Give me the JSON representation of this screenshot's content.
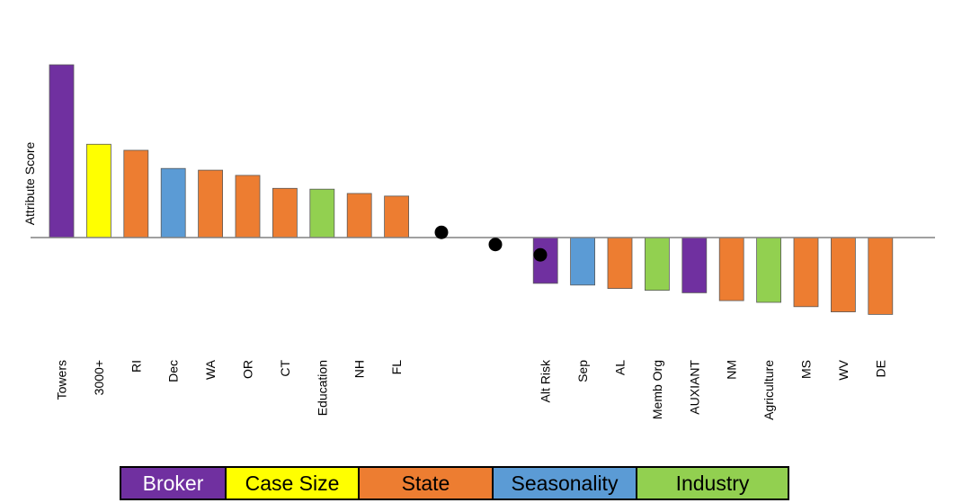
{
  "chart_data": {
    "type": "bar",
    "ylabel": "Attribute Score",
    "categories": [
      "Towers",
      "3000+",
      "RI",
      "Dec",
      "WA",
      "OR",
      "CT",
      "Education",
      "NH",
      "FL",
      "",
      "",
      "",
      "Alt Risk",
      "Sep",
      "AL",
      "Memb Org",
      "AUXIANT",
      "NM",
      "Agriculture",
      "MS",
      "WV",
      "DE"
    ],
    "values": [
      1.0,
      0.54,
      0.505,
      0.4,
      0.39,
      0.36,
      0.285,
      0.28,
      0.255,
      0.24,
      null,
      null,
      null,
      -0.265,
      -0.275,
      -0.295,
      -0.305,
      -0.32,
      -0.365,
      -0.375,
      -0.4,
      -0.43,
      -0.445
    ],
    "groups": [
      "Broker",
      "Case Size",
      "State",
      "Seasonality",
      "State",
      "State",
      "State",
      "Industry",
      "State",
      "State",
      null,
      null,
      null,
      "Broker",
      "Seasonality",
      "State",
      "Industry",
      "Broker",
      "State",
      "Industry",
      "State",
      "State",
      "State"
    ],
    "ellipsis_dots": [
      0.03,
      -0.04,
      -0.1
    ],
    "ylim": [
      -0.6,
      1.15
    ],
    "grid": false,
    "legend_position": "bottom",
    "legend": [
      {
        "name": "Broker",
        "color": "#7030A0"
      },
      {
        "name": "Case Size",
        "color": "#FFFF00"
      },
      {
        "name": "State",
        "color": "#ED7D31"
      },
      {
        "name": "Seasonality",
        "color": "#5B9BD5"
      },
      {
        "name": "Industry",
        "color": "#92D050"
      }
    ]
  }
}
